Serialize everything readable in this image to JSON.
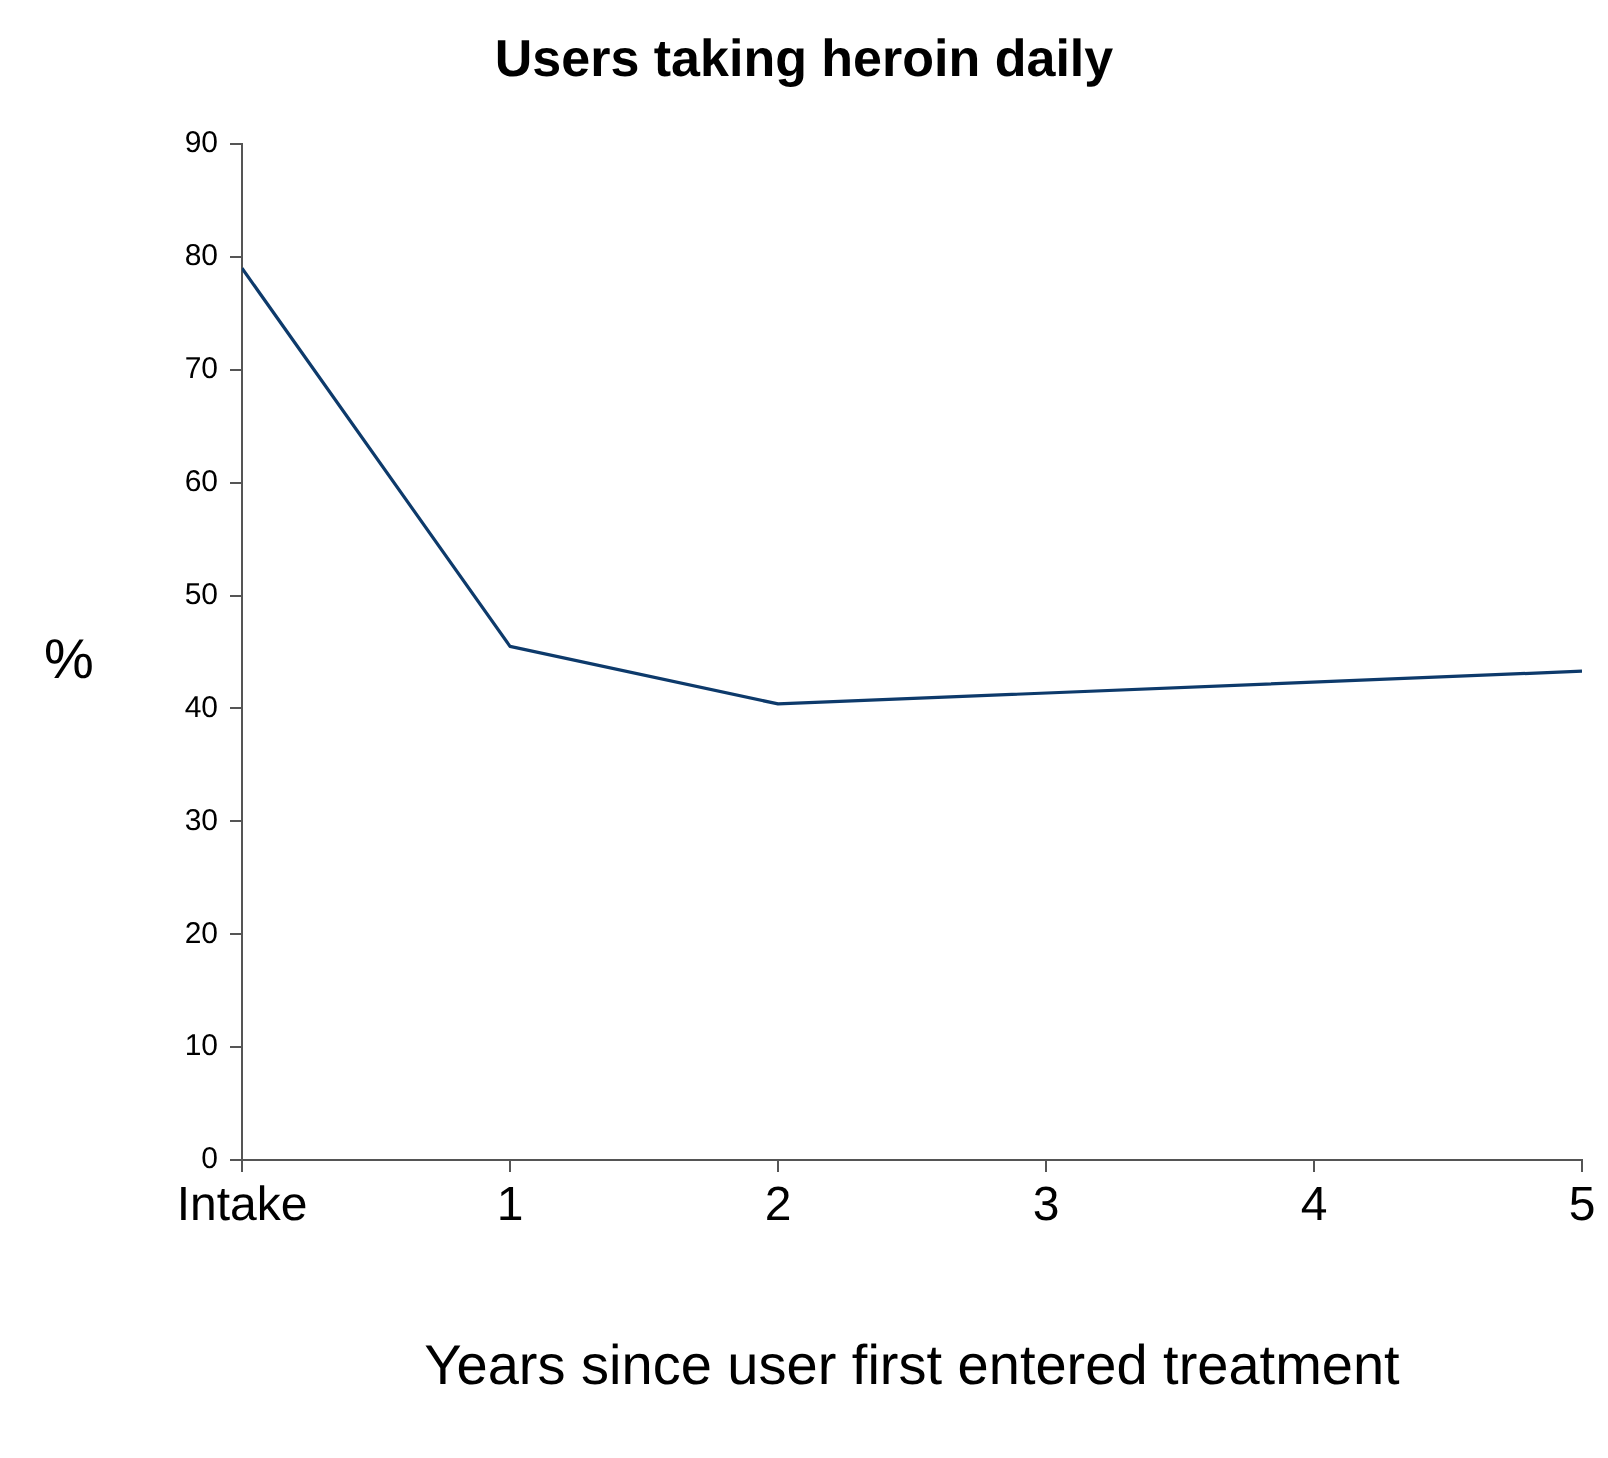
{
  "chart_data": {
    "type": "line",
    "title": "Users taking heroin daily",
    "xlabel": "Years since user first entered treatment",
    "ylabel": "%",
    "x": [
      0,
      1,
      2,
      5
    ],
    "series": [
      {
        "color": "#0d3a6b",
        "values": [
          79,
          45.5,
          40.4,
          43.3
        ]
      }
    ],
    "xlim": [
      0,
      5
    ],
    "xticks": [
      {
        "value": 0,
        "label": "Intake"
      },
      1,
      2,
      3,
      4,
      5
    ],
    "ylim": [
      0,
      90
    ],
    "yticks": [
      0,
      10,
      20,
      30,
      40,
      50,
      60,
      70,
      80,
      90
    ],
    "grid": false,
    "legend": false,
    "marker": "none",
    "line_style": "solid"
  }
}
